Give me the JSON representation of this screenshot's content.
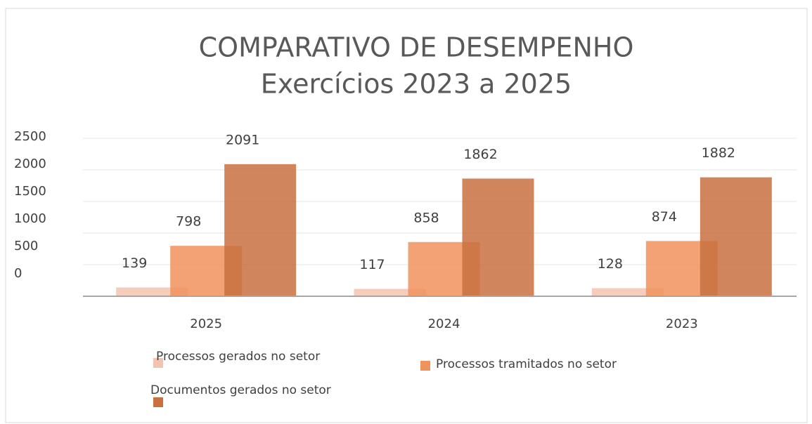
{
  "chart_data": {
    "type": "bar",
    "title": "COMPARATIVO DE DESEMPENHO",
    "subtitle": "Exercícios 2023 a 2025",
    "categories": [
      "2025",
      "2024",
      "2023"
    ],
    "series": [
      {
        "name": "Processos gerados no setor",
        "color": "#f4c3b0",
        "values": [
          139,
          117,
          128
        ]
      },
      {
        "name": "Processos tramitados no setor",
        "color": "#f0925c",
        "values": [
          798,
          858,
          874
        ]
      },
      {
        "name": "Documentos gerados no setor",
        "color": "#c8703f",
        "values": [
          2091,
          1862,
          1882
        ]
      }
    ],
    "ylim": [
      0,
      2500
    ],
    "yticks": [
      0,
      500,
      1000,
      1500,
      2000,
      2500
    ],
    "grid": true,
    "legend": "bottom"
  }
}
